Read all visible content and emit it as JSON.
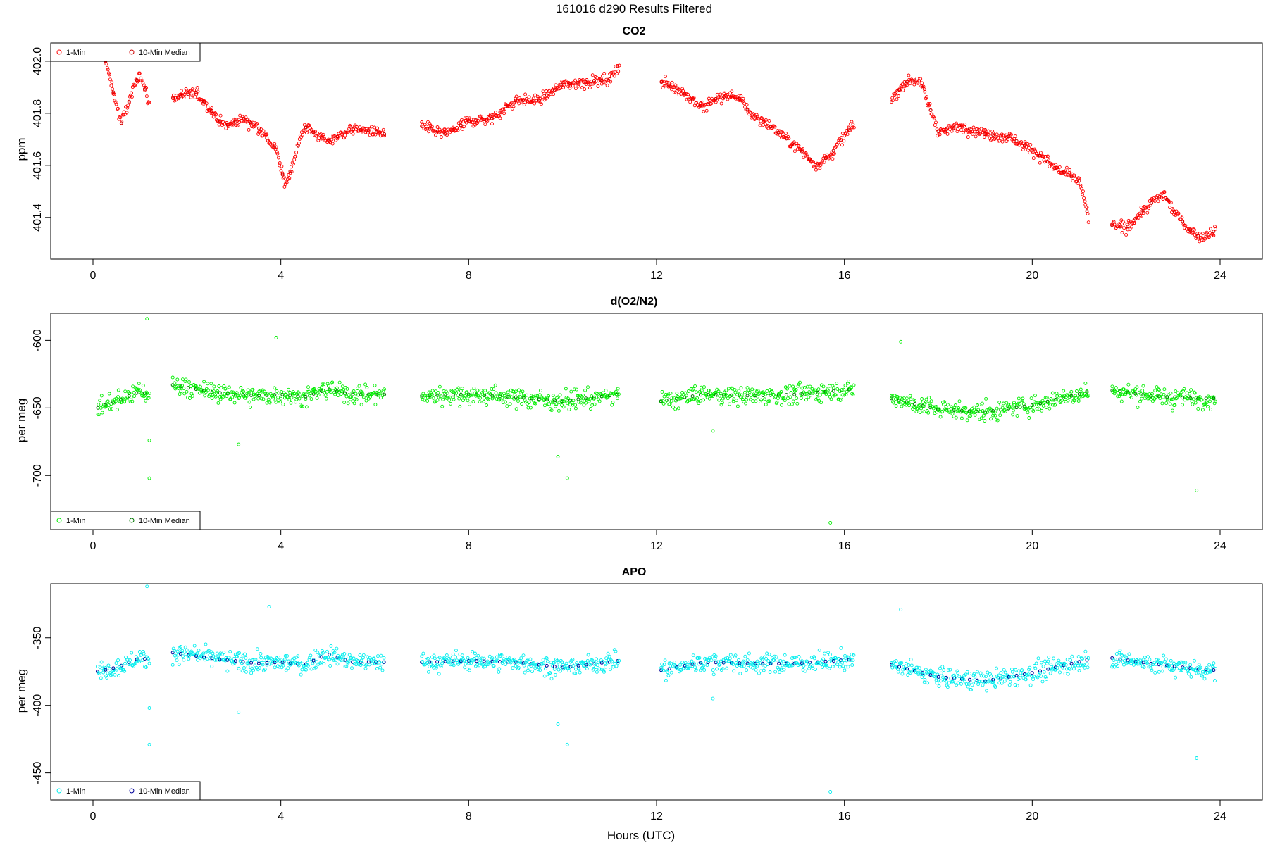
{
  "figure": {
    "title": "161016   d290   Results Filtered",
    "xlabel": "Hours (UTC)"
  },
  "chart_data": [
    {
      "type": "scatter",
      "title": "CO2",
      "ylabel": "ppm",
      "xlim": [
        -0.9,
        24.9
      ],
      "ylim": [
        401.24,
        402.07
      ],
      "xticks": [
        0,
        4,
        8,
        12,
        16,
        20,
        24
      ],
      "yticks": [
        401.4,
        401.6,
        401.8,
        402.0
      ],
      "ytick_labels": [
        "401.4",
        "401.6",
        "401.8",
        "402.0"
      ],
      "legend": {
        "position": "top-left",
        "labels": [
          "1-Min",
          "10-Min Median"
        ]
      },
      "series_colors": {
        "one_min": "#ff0000",
        "median": "#cc0000"
      },
      "segments": [
        {
          "x": [
            0.1,
            0.6,
            1.0,
            1.2
          ],
          "y": [
            402.12,
            401.76,
            401.96,
            401.83
          ]
        },
        {
          "x": [
            1.7,
            2.2,
            2.8,
            3.2,
            3.5,
            3.9,
            4.1,
            4.5,
            5.0,
            5.5,
            6.0,
            6.2
          ],
          "y": [
            401.86,
            401.88,
            401.75,
            401.78,
            401.75,
            401.66,
            401.52,
            401.75,
            401.69,
            401.74,
            401.73,
            401.72
          ]
        },
        {
          "x": [
            7.0,
            7.5,
            8.0,
            8.5,
            9.0,
            9.5,
            10.0,
            10.5,
            11.0,
            11.2
          ],
          "y": [
            401.75,
            401.72,
            401.77,
            401.78,
            401.85,
            401.85,
            401.91,
            401.92,
            401.93,
            401.99
          ]
        },
        {
          "x": [
            12.1,
            12.5,
            13.0,
            13.3,
            13.7,
            14.0,
            14.5,
            15.0,
            15.4,
            15.7,
            16.2
          ],
          "y": [
            401.92,
            401.89,
            401.82,
            401.86,
            401.87,
            401.8,
            401.74,
            401.67,
            401.6,
            401.64,
            401.76
          ]
        },
        {
          "x": [
            17.0,
            17.3,
            17.6,
            18.0,
            18.5,
            19.0,
            19.5,
            20.0,
            20.5,
            21.0,
            21.2
          ],
          "y": [
            401.85,
            401.92,
            401.93,
            401.73,
            401.75,
            401.72,
            401.71,
            401.66,
            401.59,
            401.54,
            401.4
          ]
        },
        {
          "x": [
            21.7,
            22.0,
            22.5,
            22.8,
            23.0,
            23.3,
            23.6,
            23.9
          ],
          "y": [
            401.37,
            401.36,
            401.45,
            401.49,
            401.43,
            401.36,
            401.32,
            401.35
          ]
        }
      ]
    },
    {
      "type": "scatter",
      "title": "d(O2/N2)",
      "ylabel": "per meg",
      "xlim": [
        -0.9,
        24.9
      ],
      "ylim": [
        -740,
        -580
      ],
      "xticks": [
        0,
        4,
        8,
        12,
        16,
        20,
        24
      ],
      "yticks": [
        -700,
        -650,
        -600
      ],
      "ytick_labels": [
        "-700",
        "-650",
        "-600"
      ],
      "legend": {
        "position": "bottom-left",
        "labels": [
          "1-Min",
          "10-Min Median"
        ]
      },
      "series_colors": {
        "one_min": "#00ee00",
        "median": "#007700"
      },
      "segments": [
        {
          "x": [
            0.1,
            0.5,
            1.0,
            1.2
          ],
          "y": [
            -650,
            -645,
            -638,
            -640
          ]
        },
        {
          "x": [
            1.7,
            2.5,
            3.0,
            3.5,
            4.0,
            4.5,
            5.0,
            5.5,
            6.2
          ],
          "y": [
            -633,
            -638,
            -640,
            -641,
            -640,
            -642,
            -636,
            -640,
            -640
          ]
        },
        {
          "x": [
            7.0,
            8.0,
            9.0,
            10.0,
            11.2
          ],
          "y": [
            -641,
            -640,
            -642,
            -645,
            -640
          ]
        },
        {
          "x": [
            12.1,
            13.0,
            14.0,
            15.0,
            16.2
          ],
          "y": [
            -645,
            -640,
            -641,
            -640,
            -636
          ]
        },
        {
          "x": [
            17.0,
            18.0,
            19.0,
            20.0,
            21.2
          ],
          "y": [
            -643,
            -651,
            -653,
            -648,
            -638
          ]
        },
        {
          "x": [
            21.7,
            22.5,
            23.5,
            23.9
          ],
          "y": [
            -637,
            -641,
            -643,
            -643
          ]
        }
      ],
      "outliers": [
        {
          "x": 1.15,
          "y": -584
        },
        {
          "x": 1.2,
          "y": -702
        },
        {
          "x": 1.2,
          "y": -674
        },
        {
          "x": 3.9,
          "y": -598
        },
        {
          "x": 3.1,
          "y": -677
        },
        {
          "x": 10.1,
          "y": -702
        },
        {
          "x": 9.9,
          "y": -686
        },
        {
          "x": 15.7,
          "y": -735
        },
        {
          "x": 17.2,
          "y": -601
        },
        {
          "x": 23.5,
          "y": -711
        },
        {
          "x": 13.2,
          "y": -667
        }
      ]
    },
    {
      "type": "scatter",
      "title": "APO",
      "ylabel": "per meg",
      "xlim": [
        -0.9,
        24.9
      ],
      "ylim": [
        -470,
        -310
      ],
      "xticks": [
        0,
        4,
        8,
        12,
        16,
        20,
        24
      ],
      "yticks": [
        -450,
        -400,
        -350
      ],
      "ytick_labels": [
        "-450",
        "-400",
        "-350"
      ],
      "legend": {
        "position": "bottom-left",
        "labels": [
          "1-Min",
          "10-Min Median"
        ]
      },
      "series_colors": {
        "one_min": "#00eeee",
        "median": "#000099"
      },
      "segments": [
        {
          "x": [
            0.1,
            0.5,
            1.0,
            1.2
          ],
          "y": [
            -375,
            -372,
            -365,
            -366
          ]
        },
        {
          "x": [
            1.7,
            2.5,
            3.0,
            3.5,
            4.0,
            4.5,
            5.0,
            5.5,
            6.2
          ],
          "y": [
            -361,
            -365,
            -367,
            -369,
            -368,
            -370,
            -362,
            -368,
            -368
          ]
        },
        {
          "x": [
            7.0,
            8.0,
            9.0,
            10.0,
            11.2
          ],
          "y": [
            -368,
            -367,
            -368,
            -372,
            -367
          ]
        },
        {
          "x": [
            12.1,
            13.0,
            14.0,
            15.0,
            16.2
          ],
          "y": [
            -374,
            -368,
            -369,
            -369,
            -366
          ]
        },
        {
          "x": [
            17.0,
            18.0,
            19.0,
            20.0,
            21.2
          ],
          "y": [
            -370,
            -379,
            -382,
            -376,
            -366
          ]
        },
        {
          "x": [
            21.7,
            22.5,
            23.5,
            23.9
          ],
          "y": [
            -365,
            -369,
            -373,
            -374
          ]
        }
      ],
      "outliers": [
        {
          "x": 1.15,
          "y": -312
        },
        {
          "x": 1.2,
          "y": -429
        },
        {
          "x": 1.2,
          "y": -402
        },
        {
          "x": 3.75,
          "y": -327
        },
        {
          "x": 3.1,
          "y": -405
        },
        {
          "x": 10.1,
          "y": -429
        },
        {
          "x": 9.9,
          "y": -414
        },
        {
          "x": 15.7,
          "y": -464
        },
        {
          "x": 17.2,
          "y": -329
        },
        {
          "x": 23.5,
          "y": -439
        },
        {
          "x": 13.2,
          "y": -395
        }
      ]
    }
  ]
}
